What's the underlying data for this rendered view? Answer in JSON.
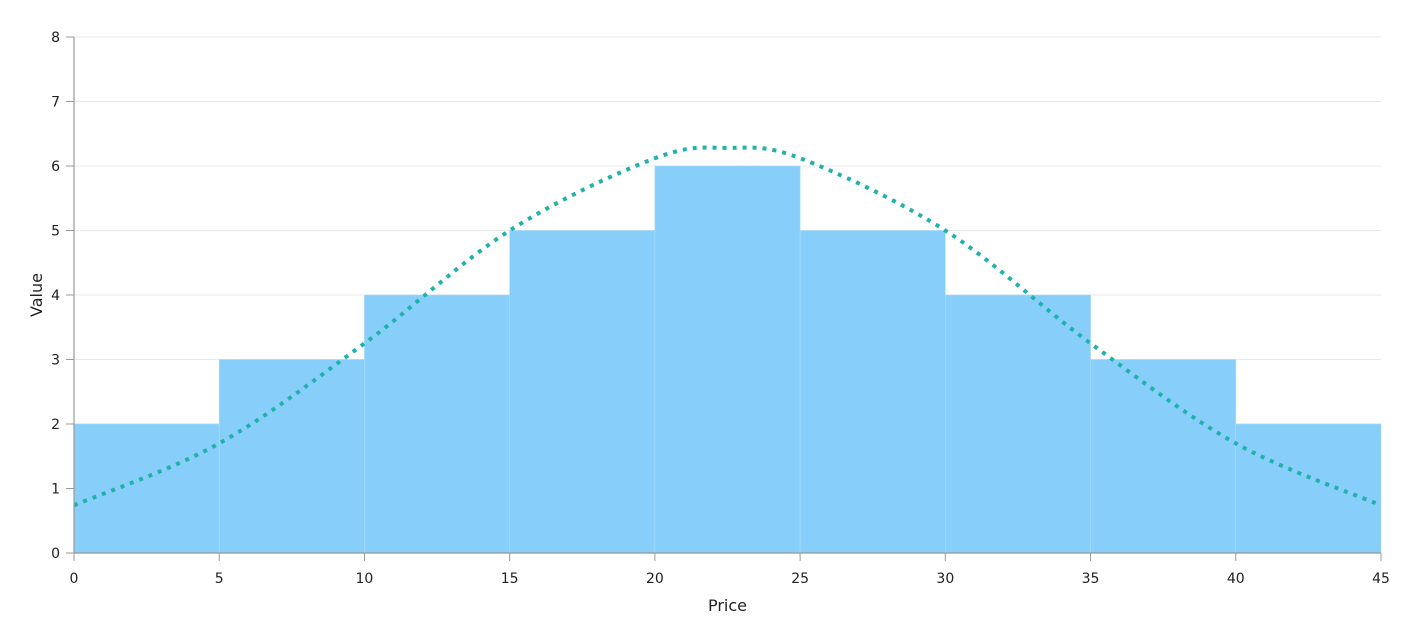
{
  "chart_data": {
    "type": "bar",
    "subtype": "histogram-with-normal-curve",
    "xlabel": "Price",
    "ylabel": "Value",
    "xlim": [
      0,
      45
    ],
    "ylim": [
      0,
      8
    ],
    "x_ticks": [
      0,
      5,
      10,
      15,
      20,
      25,
      30,
      35,
      40,
      45
    ],
    "y_ticks": [
      0,
      1,
      2,
      3,
      4,
      5,
      6,
      7,
      8
    ],
    "grid": "horizontal",
    "bins": [
      {
        "from": 0,
        "to": 5,
        "value": 2
      },
      {
        "from": 5,
        "to": 10,
        "value": 3
      },
      {
        "from": 10,
        "to": 15,
        "value": 4
      },
      {
        "from": 15,
        "to": 20,
        "value": 5
      },
      {
        "from": 20,
        "to": 25,
        "value": 6
      },
      {
        "from": 25,
        "to": 30,
        "value": 5
      },
      {
        "from": 30,
        "to": 35,
        "value": 4
      },
      {
        "from": 35,
        "to": 40,
        "value": 3
      },
      {
        "from": 40,
        "to": 45,
        "value": 2
      }
    ],
    "curve": {
      "style": "dotted",
      "points": [
        {
          "x": 0,
          "y": 0.74
        },
        {
          "x": 5,
          "y": 1.7
        },
        {
          "x": 10,
          "y": 3.25
        },
        {
          "x": 15,
          "y": 5.0
        },
        {
          "x": 20,
          "y": 6.12
        },
        {
          "x": 22.5,
          "y": 6.28
        },
        {
          "x": 25,
          "y": 6.12
        },
        {
          "x": 30,
          "y": 5.0
        },
        {
          "x": 35,
          "y": 3.25
        },
        {
          "x": 40,
          "y": 1.7
        },
        {
          "x": 45,
          "y": 0.74
        }
      ]
    },
    "colors": {
      "bar": "#87CEFA",
      "curve": "#20B2AA",
      "grid": "#E8E8E8",
      "axis": "#999999"
    }
  }
}
